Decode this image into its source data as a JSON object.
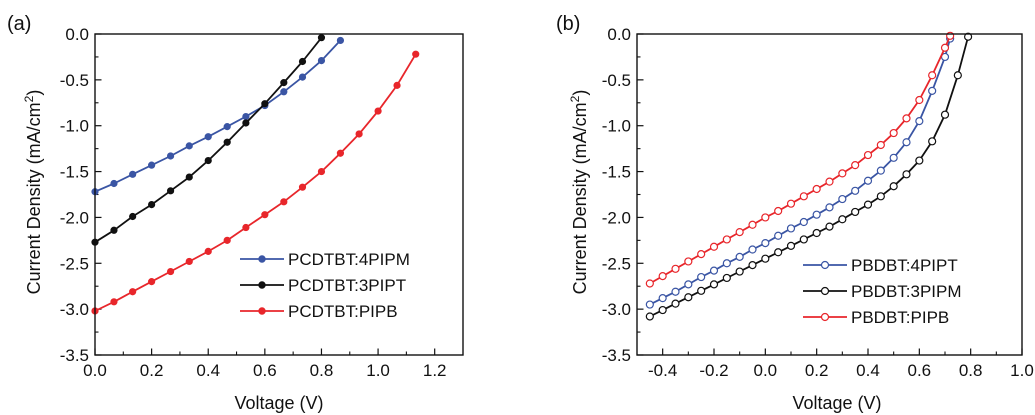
{
  "figure": {
    "panels": [
      {
        "tag": "(a)",
        "xlabel": "Voltage (V)",
        "ylabel_main": "Current Density (mA/cm",
        "ylabel_sup": "2",
        "ylabel_close": ")"
      },
      {
        "tag": "(b)",
        "xlabel": "Voltage (V)",
        "ylabel_main": "Current Density (mA/cm",
        "ylabel_sup": "2",
        "ylabel_close": ")"
      }
    ]
  },
  "chart_data": [
    {
      "type": "line",
      "title": "",
      "panel_tag": "(a)",
      "xlabel": "Voltage (V)",
      "ylabel": "Current Density (mA/cm2)",
      "xlim": [
        0.0,
        1.3
      ],
      "ylim": [
        -3.5,
        0.0
      ],
      "xticks": [
        0.0,
        0.2,
        0.4,
        0.6,
        0.8,
        1.0,
        1.2
      ],
      "yticks": [
        -3.5,
        -3.0,
        -2.5,
        -2.0,
        -1.5,
        -1.0,
        -0.5,
        0.0
      ],
      "xtick_labels": [
        "0.0",
        "0.2",
        "0.4",
        "0.6",
        "0.8",
        "1.0",
        "1.2"
      ],
      "ytick_labels": [
        "-3.5",
        "-3.0",
        "-2.5",
        "-2.0",
        "-1.5",
        "-1.0",
        "-0.5",
        "0.0"
      ],
      "grid": false,
      "legend_position": "bottom-right",
      "marker": "filled-circle",
      "series": [
        {
          "name": "PCDTBT:4PIPM",
          "color": "#3a55a4",
          "x": [
            0.0,
            0.067,
            0.133,
            0.2,
            0.267,
            0.333,
            0.4,
            0.467,
            0.533,
            0.6,
            0.667,
            0.733,
            0.8,
            0.867
          ],
          "y": [
            -1.72,
            -1.63,
            -1.53,
            -1.43,
            -1.33,
            -1.22,
            -1.12,
            -1.01,
            -0.9,
            -0.78,
            -0.63,
            -0.47,
            -0.29,
            -0.07
          ]
        },
        {
          "name": "PCDTBT:3PIPT",
          "color": "#111111",
          "x": [
            0.0,
            0.067,
            0.133,
            0.2,
            0.267,
            0.333,
            0.4,
            0.467,
            0.533,
            0.6,
            0.667,
            0.733,
            0.8
          ],
          "y": [
            -2.27,
            -2.14,
            -1.99,
            -1.86,
            -1.71,
            -1.56,
            -1.38,
            -1.18,
            -0.97,
            -0.76,
            -0.53,
            -0.3,
            -0.04
          ]
        },
        {
          "name": "PCDTBT:PIPB",
          "color": "#e8262b",
          "x": [
            0.0,
            0.067,
            0.133,
            0.2,
            0.267,
            0.333,
            0.4,
            0.467,
            0.533,
            0.6,
            0.667,
            0.733,
            0.8,
            0.867,
            0.933,
            1.0,
            1.067,
            1.133
          ],
          "y": [
            -3.02,
            -2.92,
            -2.81,
            -2.7,
            -2.59,
            -2.48,
            -2.37,
            -2.25,
            -2.11,
            -1.97,
            -1.83,
            -1.67,
            -1.5,
            -1.3,
            -1.09,
            -0.84,
            -0.56,
            -0.22
          ]
        }
      ]
    },
    {
      "type": "line",
      "title": "",
      "panel_tag": "(b)",
      "xlabel": "Voltage (V)",
      "ylabel": "Current Density (mA/cm2)",
      "xlim": [
        -0.5,
        1.0
      ],
      "ylim": [
        -3.5,
        0.0
      ],
      "xticks": [
        -0.4,
        -0.2,
        0.0,
        0.2,
        0.4,
        0.6,
        0.8,
        1.0
      ],
      "yticks": [
        -3.5,
        -3.0,
        -2.5,
        -2.0,
        -1.5,
        -1.0,
        -0.5,
        0.0
      ],
      "xtick_labels": [
        "-0.4",
        "-0.2",
        "0.0",
        "0.2",
        "0.4",
        "0.6",
        "0.8",
        "1.0"
      ],
      "ytick_labels": [
        "-3.5",
        "-3.0",
        "-2.5",
        "-2.0",
        "-1.5",
        "-1.0",
        "-0.5",
        "0.0"
      ],
      "grid": false,
      "legend_position": "bottom-right",
      "marker": "open-circle",
      "series": [
        {
          "name": "PBDBT:4PIPT",
          "color": "#3a55a4",
          "x": [
            -0.45,
            -0.4,
            -0.35,
            -0.3,
            -0.25,
            -0.2,
            -0.15,
            -0.1,
            -0.05,
            0.0,
            0.05,
            0.1,
            0.15,
            0.2,
            0.25,
            0.3,
            0.35,
            0.4,
            0.45,
            0.5,
            0.55,
            0.6,
            0.65,
            0.7,
            0.72
          ],
          "y": [
            -2.95,
            -2.88,
            -2.81,
            -2.73,
            -2.65,
            -2.58,
            -2.5,
            -2.43,
            -2.35,
            -2.28,
            -2.2,
            -2.12,
            -2.05,
            -1.97,
            -1.89,
            -1.8,
            -1.71,
            -1.6,
            -1.49,
            -1.35,
            -1.18,
            -0.95,
            -0.62,
            -0.25,
            -0.05
          ]
        },
        {
          "name": "PBDBT:3PIPM",
          "color": "#111111",
          "x": [
            -0.45,
            -0.4,
            -0.35,
            -0.3,
            -0.25,
            -0.2,
            -0.15,
            -0.1,
            -0.05,
            0.0,
            0.05,
            0.1,
            0.15,
            0.2,
            0.25,
            0.3,
            0.35,
            0.4,
            0.45,
            0.5,
            0.55,
            0.6,
            0.65,
            0.7,
            0.75,
            0.79
          ],
          "y": [
            -3.08,
            -3.01,
            -2.94,
            -2.87,
            -2.8,
            -2.73,
            -2.66,
            -2.59,
            -2.52,
            -2.45,
            -2.38,
            -2.31,
            -2.24,
            -2.17,
            -2.1,
            -2.02,
            -1.94,
            -1.86,
            -1.77,
            -1.66,
            -1.53,
            -1.38,
            -1.17,
            -0.88,
            -0.45,
            -0.03
          ]
        },
        {
          "name": "PBDBT:PIPB",
          "color": "#e8262b",
          "x": [
            -0.45,
            -0.4,
            -0.35,
            -0.3,
            -0.25,
            -0.2,
            -0.15,
            -0.1,
            -0.05,
            0.0,
            0.05,
            0.1,
            0.15,
            0.2,
            0.25,
            0.3,
            0.35,
            0.4,
            0.45,
            0.5,
            0.55,
            0.6,
            0.65,
            0.7,
            0.72
          ],
          "y": [
            -2.72,
            -2.64,
            -2.56,
            -2.48,
            -2.4,
            -2.32,
            -2.24,
            -2.16,
            -2.08,
            -2.0,
            -1.93,
            -1.85,
            -1.77,
            -1.69,
            -1.61,
            -1.52,
            -1.43,
            -1.32,
            -1.21,
            -1.08,
            -0.92,
            -0.72,
            -0.45,
            -0.15,
            -0.02
          ]
        }
      ]
    }
  ]
}
